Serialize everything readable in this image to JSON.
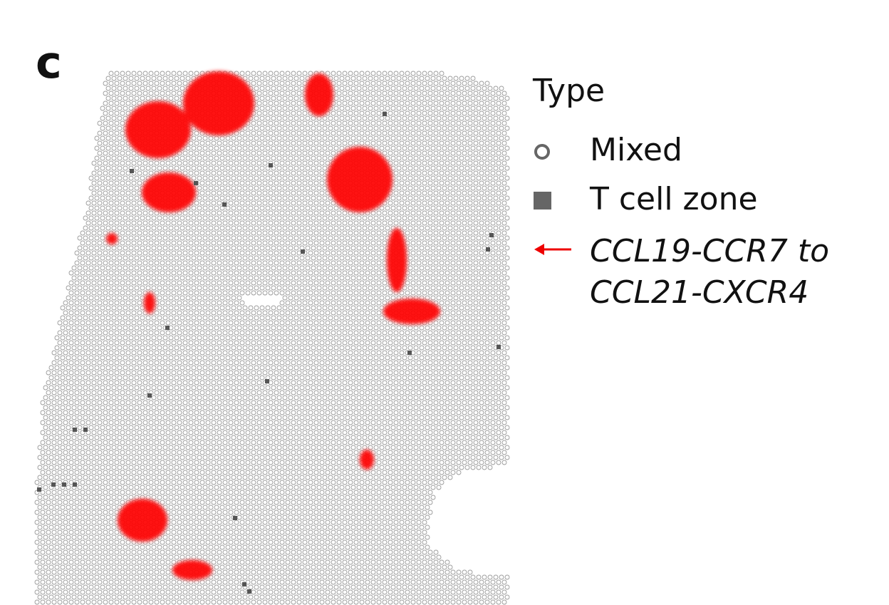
{
  "panel_label": "c",
  "legend": {
    "title": "Type",
    "entries": [
      {
        "label": "Mixed"
      },
      {
        "label": "T cell zone"
      },
      {
        "label_lines": [
          "CCL19-CCR7 to",
          "CCL21-CXCR4"
        ]
      }
    ]
  }
}
